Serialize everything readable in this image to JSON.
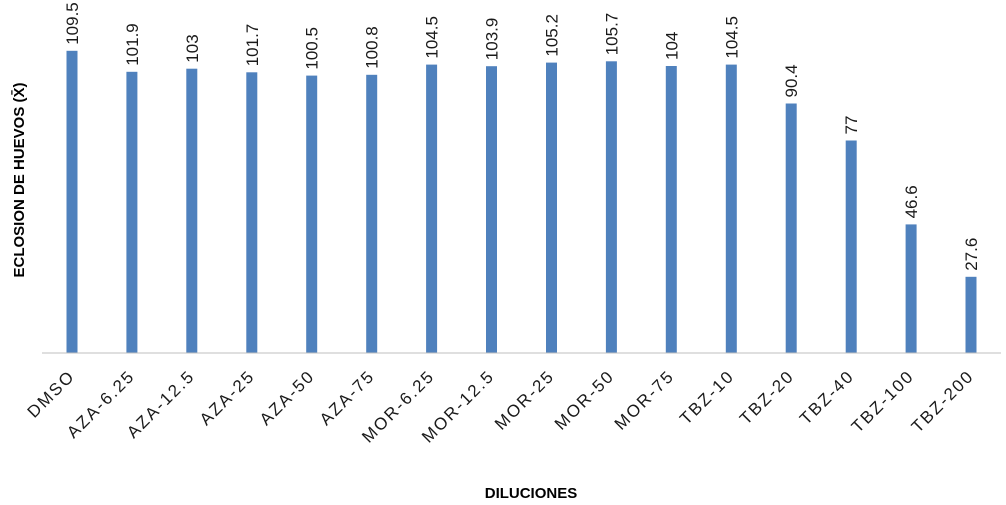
{
  "chart_data": {
    "type": "bar",
    "title": "",
    "xlabel": "DILUCIONES",
    "ylabel": "ECLOSION DE HUEVOS (X̄)",
    "categories": [
      "DMSO",
      "AZA-6.25",
      "AZA-12.5",
      "AZA-25",
      "AZA-50",
      "AZA-75",
      "MOR-6.25",
      "MOR-12.5",
      "MOR-25",
      "MOR-50",
      "MOR-75",
      "TBZ-10",
      "TBZ-20",
      "TBZ-40",
      "TBZ-100",
      "TBZ-200"
    ],
    "values": [
      109.5,
      101.9,
      103,
      101.7,
      100.5,
      100.8,
      104.5,
      103.9,
      105.2,
      105.7,
      104,
      104.5,
      90.4,
      77,
      46.6,
      27.6
    ],
    "value_labels": [
      "109.5",
      "101.9",
      "103",
      "101.7",
      "100.5",
      "100.8",
      "104.5",
      "103.9",
      "105.2",
      "105.7",
      "104",
      "104.5",
      "90.4",
      "77",
      "46.6",
      "27.6"
    ],
    "ylim": [
      0,
      110
    ],
    "grid": false,
    "legend": "none",
    "colors": {
      "bar": "#4F81BD",
      "axis": "#bfbfbf"
    }
  }
}
